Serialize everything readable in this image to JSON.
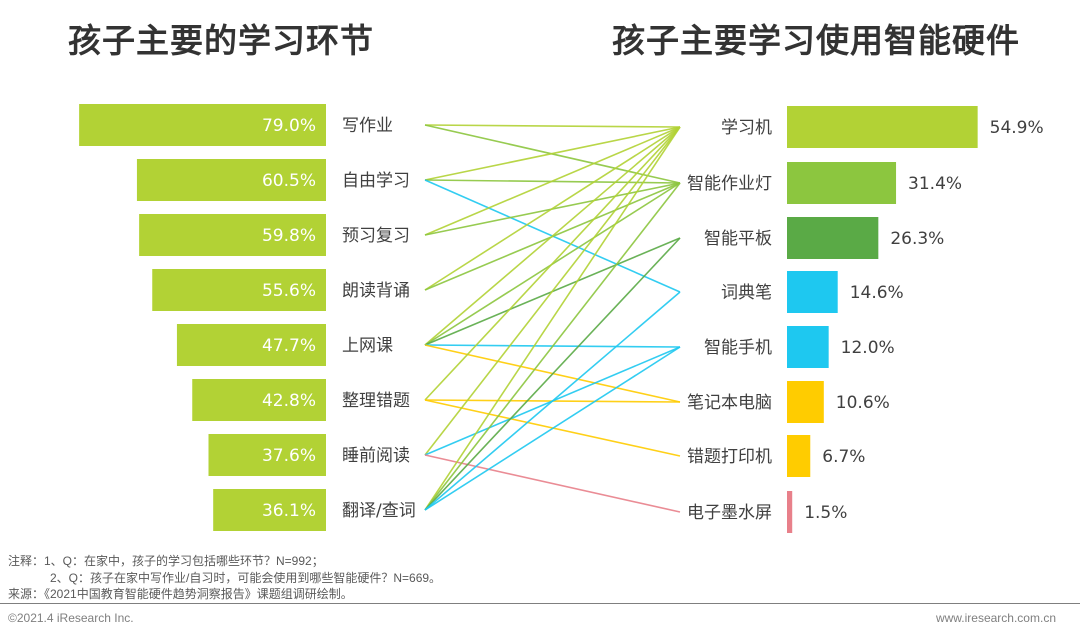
{
  "titles": {
    "left": "孩子主要的学习环节",
    "right": "孩子主要学习使用智能硬件"
  },
  "chart_data": [
    {
      "type": "bar",
      "orientation": "horizontal",
      "title": "孩子主要的学习环节",
      "categories": [
        "写作业",
        "自由学习",
        "预习复习",
        "朗读背诵",
        "上网课",
        "整理错题",
        "睡前阅读",
        "翻译/查词"
      ],
      "values": [
        79.0,
        60.5,
        59.8,
        55.6,
        47.7,
        42.8,
        37.6,
        36.1
      ],
      "value_labels": [
        "79.0%",
        "60.5%",
        "59.8%",
        "55.6%",
        "47.7%",
        "42.8%",
        "37.6%",
        "36.1%"
      ],
      "unit": "%",
      "direction": "right-to-left",
      "bar_color": "#b2d235",
      "xlim": [
        0,
        80
      ]
    },
    {
      "type": "bar",
      "orientation": "horizontal",
      "title": "孩子主要学习使用智能硬件",
      "categories": [
        "学习机",
        "智能作业灯",
        "智能平板",
        "词典笔",
        "智能手机",
        "笔记本电脑",
        "错题打印机",
        "电子墨水屏"
      ],
      "values": [
        54.9,
        31.4,
        26.3,
        14.6,
        12.0,
        10.6,
        6.7,
        1.5
      ],
      "value_labels": [
        "54.9%",
        "31.4%",
        "26.3%",
        "14.6%",
        "12.0%",
        "10.6%",
        "6.7%",
        "1.5%"
      ],
      "colors": [
        "#b2d235",
        "#8cc63f",
        "#5aaa46",
        "#1ec8f0",
        "#1ec8f0",
        "#ffcc00",
        "#ffcc00",
        "#e8808a"
      ],
      "unit": "%",
      "direction": "left-to-right",
      "xlim": [
        0,
        55
      ]
    },
    {
      "type": "links",
      "description": "学习环节与智能硬件的对应关系",
      "links": [
        {
          "from": "写作业",
          "to": "学习机"
        },
        {
          "from": "写作业",
          "to": "智能作业灯"
        },
        {
          "from": "自由学习",
          "to": "学习机"
        },
        {
          "from": "自由学习",
          "to": "智能作业灯"
        },
        {
          "from": "自由学习",
          "to": "词典笔"
        },
        {
          "from": "预习复习",
          "to": "学习机"
        },
        {
          "from": "预习复习",
          "to": "智能作业灯"
        },
        {
          "from": "朗读背诵",
          "to": "学习机"
        },
        {
          "from": "朗读背诵",
          "to": "智能作业灯"
        },
        {
          "from": "上网课",
          "to": "学习机"
        },
        {
          "from": "上网课",
          "to": "智能作业灯"
        },
        {
          "from": "上网课",
          "to": "智能平板"
        },
        {
          "from": "上网课",
          "to": "智能手机"
        },
        {
          "from": "上网课",
          "to": "笔记本电脑"
        },
        {
          "from": "整理错题",
          "to": "学习机"
        },
        {
          "from": "整理错题",
          "to": "笔记本电脑"
        },
        {
          "from": "整理错题",
          "to": "错题打印机"
        },
        {
          "from": "睡前阅读",
          "to": "学习机"
        },
        {
          "from": "睡前阅读",
          "to": "智能手机"
        },
        {
          "from": "睡前阅读",
          "to": "电子墨水屏"
        },
        {
          "from": "翻译/查词",
          "to": "学习机"
        },
        {
          "from": "翻译/查词",
          "to": "智能作业灯"
        },
        {
          "from": "翻译/查词",
          "to": "智能平板"
        },
        {
          "from": "翻译/查词",
          "to": "词典笔"
        },
        {
          "from": "翻译/查词",
          "to": "智能手机"
        }
      ]
    }
  ],
  "notes": {
    "line1": "注释：1、Q：在家中，孩子的学习包括哪些环节？N=992；",
    "line2": "2、Q：孩子在家中写作业/自习时，可能会使用到哪些智能硬件？N=669。",
    "source": "来源：《2021中国教育智能硬件趋势洞察报告》课题组调研绘制。"
  },
  "footer": {
    "copyright": "©2021.4 iResearch Inc.",
    "website": "www.iresearch.com.cn"
  }
}
